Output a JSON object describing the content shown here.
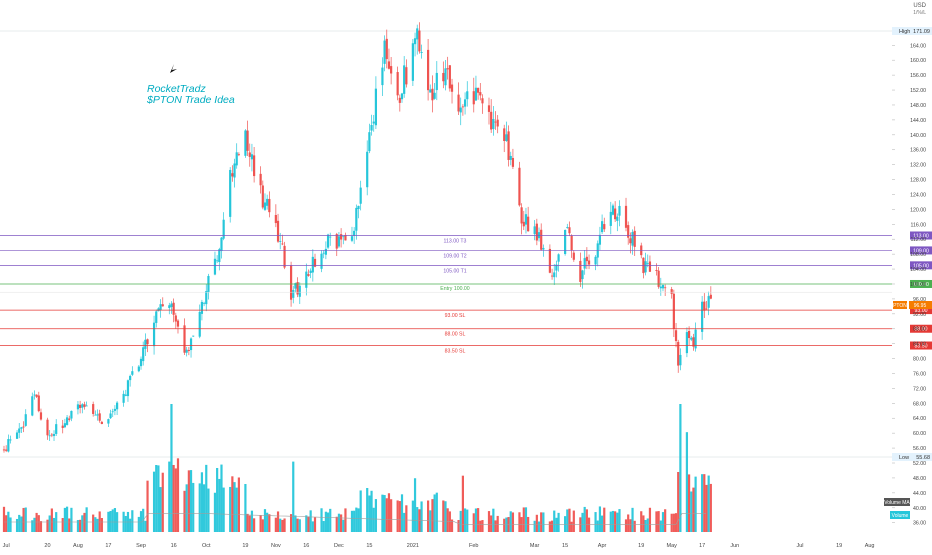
{
  "currency": "USD",
  "scale_mode": "1/%/L",
  "note": {
    "line1": "RocketTradz",
    "line2": "$PTON Trade Idea"
  },
  "levels": [
    {
      "name": "113.00 T3",
      "value": 113.0,
      "badge": "113.00",
      "kind": "target"
    },
    {
      "name": "109.00 T2",
      "value": 109.0,
      "badge": "109.00",
      "kind": "target"
    },
    {
      "name": "105.00 T1",
      "value": 105.0,
      "badge": "105.00",
      "kind": "target"
    },
    {
      "name": "",
      "value": 100.0,
      "badge": "100.00",
      "kind": "entry"
    },
    {
      "name": "Entry 100.00",
      "value": 97.8,
      "badge": "",
      "kind": "entry-label"
    },
    {
      "name": "93.00 SL",
      "value": 93.0,
      "badge": "93.00",
      "kind": "stop"
    },
    {
      "name": "88.00 SL",
      "value": 88.0,
      "badge": "88.00",
      "kind": "stop"
    },
    {
      "name": "83.50 SL",
      "value": 83.5,
      "badge": "83.50",
      "kind": "stop"
    }
  ],
  "high": {
    "label": "High",
    "value": "171.09"
  },
  "low": {
    "label": "Low",
    "value": "55.68"
  },
  "price_tag": {
    "label": "PTON",
    "value": "96.95"
  },
  "volume_ma_label": "Volume MA",
  "volume_label": "Volume",
  "colors": {
    "up": "#26c6da",
    "down": "#ef5350",
    "target": "#7e57c2",
    "entry": "#4caf50",
    "stop": "#e53935",
    "accent": "#00acc1",
    "price_tag": "#f57c00"
  },
  "chart_data": {
    "type": "candlestick",
    "title": "",
    "xlabel": "",
    "ylabel": "USD",
    "ylim": [
      33.5,
      174
    ],
    "y_ticks": [
      "36.00",
      "40.00",
      "44.00",
      "48.00",
      "52.00",
      "56.00",
      "60.00",
      "64.00",
      "68.00",
      "72.00",
      "76.00",
      "80.00",
      "84.00",
      "88.00",
      "92.00",
      "96.00",
      "100.00",
      "104.00",
      "108.00",
      "112.00",
      "116.00",
      "120.00",
      "124.00",
      "128.00",
      "132.00",
      "136.00",
      "140.00",
      "144.00",
      "148.00",
      "152.00",
      "156.00",
      "160.00",
      "164.00",
      "168.00",
      "171.09"
    ],
    "x_ticks": [
      "Jul",
      "20",
      "Aug",
      "17",
      "Sep",
      "16",
      "Oct",
      "19",
      "Nov",
      "16",
      "Dec",
      "15",
      "2021",
      "Feb",
      "Mar",
      "15",
      "Apr",
      "19",
      "May",
      "17",
      "Jun",
      "Jul",
      "19",
      "Aug"
    ],
    "x_tick_dates": [
      "2020-07-01",
      "2020-07-20",
      "2020-08-03",
      "2020-08-17",
      "2020-09-01",
      "2020-09-16",
      "2020-10-01",
      "2020-10-19",
      "2020-11-02",
      "2020-11-16",
      "2020-12-01",
      "2020-12-15",
      "2021-01-04",
      "2021-02-01",
      "2021-03-01",
      "2021-03-15",
      "2021-04-01",
      "2021-04-19",
      "2021-05-03",
      "2021-05-17",
      "2021-06-01",
      "2021-07-01",
      "2021-07-19",
      "2021-08-02"
    ],
    "x_range": [
      "2020-06-30",
      "2021-08-10"
    ],
    "price_path": [
      [
        "2020-06-30",
        56.0
      ],
      [
        "2020-07-08",
        61.0
      ],
      [
        "2020-07-14",
        70.0
      ],
      [
        "2020-07-20",
        60.5
      ],
      [
        "2020-07-27",
        62.0
      ],
      [
        "2020-08-03",
        69.0
      ],
      [
        "2020-08-10",
        64.0
      ],
      [
        "2020-08-17",
        63.5
      ],
      [
        "2020-08-24",
        70.0
      ],
      [
        "2020-08-31",
        79.0
      ],
      [
        "2020-09-08",
        92.0
      ],
      [
        "2020-09-14",
        94.5
      ],
      [
        "2020-09-22",
        82.0
      ],
      [
        "2020-09-28",
        93.0
      ],
      [
        "2020-10-06",
        107.0
      ],
      [
        "2020-10-12",
        128.0
      ],
      [
        "2020-10-19",
        138.0
      ],
      [
        "2020-10-26",
        124.0
      ],
      [
        "2020-11-02",
        117.0
      ],
      [
        "2020-11-09",
        96.5
      ],
      [
        "2020-11-16",
        103.0
      ],
      [
        "2020-11-23",
        110.0
      ],
      [
        "2020-12-01",
        112.0
      ],
      [
        "2020-12-08",
        114.0
      ],
      [
        "2020-12-15",
        140.0
      ],
      [
        "2020-12-22",
        163.0
      ],
      [
        "2020-12-29",
        152.0
      ],
      [
        "2021-01-06",
        165.0
      ],
      [
        "2021-01-12",
        150.0
      ],
      [
        "2021-01-20",
        158.0
      ],
      [
        "2021-01-26",
        147.0
      ],
      [
        "2021-02-02",
        150.0
      ],
      [
        "2021-02-09",
        143.0
      ],
      [
        "2021-02-16",
        137.0
      ],
      [
        "2021-02-23",
        118.0
      ],
      [
        "2021-03-01",
        115.0
      ],
      [
        "2021-03-08",
        102.0
      ],
      [
        "2021-03-15",
        114.0
      ],
      [
        "2021-03-22",
        103.0
      ],
      [
        "2021-03-29",
        110.0
      ],
      [
        "2021-04-05",
        121.0
      ],
      [
        "2021-04-12",
        116.0
      ],
      [
        "2021-04-19",
        106.0
      ],
      [
        "2021-04-26",
        101.0
      ],
      [
        "2021-05-03",
        95.0
      ],
      [
        "2021-05-06",
        80.0
      ],
      [
        "2021-05-10",
        86.0
      ],
      [
        "2021-05-13",
        84.0
      ],
      [
        "2021-05-17",
        93.0
      ],
      [
        "2021-05-21",
        96.95
      ]
    ],
    "volume_spikes": [
      {
        "date": "2020-09-15",
        "value": 1.0
      },
      {
        "date": "2020-11-10",
        "value": 0.55
      },
      {
        "date": "2021-01-05",
        "value": 0.42
      },
      {
        "date": "2021-01-27",
        "value": 0.44
      },
      {
        "date": "2021-05-07",
        "value": 1.0
      },
      {
        "date": "2021-05-10",
        "value": 0.78
      }
    ]
  }
}
